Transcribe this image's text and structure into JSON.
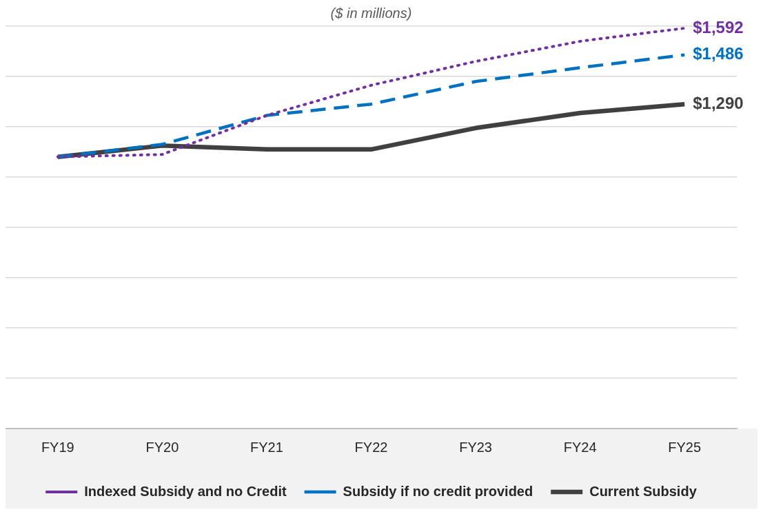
{
  "chart_data": {
    "type": "line",
    "subtitle": "($ in millions)",
    "categories": [
      "FY19",
      "FY20",
      "FY21",
      "FY22",
      "FY23",
      "FY24",
      "FY25"
    ],
    "series": [
      {
        "name": "Indexed Subsidy and no Credit",
        "color": "#7030a0",
        "line_style": "dotted",
        "values": [
          1080,
          1090,
          1245,
          1365,
          1460,
          1540,
          1592
        ],
        "value_labels": [
          null,
          null,
          null,
          null,
          null,
          null,
          "$1,592"
        ]
      },
      {
        "name": "Subsidy if no credit provided",
        "color": "#0070c0",
        "line_style": "dashed",
        "values": [
          1080,
          1130,
          1245,
          1290,
          1380,
          1435,
          1486
        ],
        "value_labels": [
          null,
          null,
          null,
          null,
          null,
          null,
          "$1,486"
        ]
      },
      {
        "name": "Current Subsidy",
        "color": "#404040",
        "line_style": "solid",
        "values": [
          1080,
          1125,
          1110,
          1110,
          1195,
          1255,
          1290
        ],
        "value_labels": [
          null,
          null,
          null,
          null,
          null,
          null,
          "$1,290"
        ]
      }
    ],
    "ylim": [
      0,
      1600
    ],
    "yticks": [
      {
        "value": 0,
        "label": null
      },
      {
        "value": 200,
        "label": null
      },
      {
        "value": 400,
        "label": null
      },
      {
        "value": 600,
        "label": null
      },
      {
        "value": 800,
        "label": null
      },
      {
        "value": 1000,
        "label": null
      },
      {
        "value": 1200,
        "label": null
      },
      {
        "value": 1400,
        "label": null
      },
      {
        "value": 1600,
        "label": null
      }
    ],
    "tick_labels": "x",
    "grid": "y",
    "legend": "bottom",
    "marker": "none"
  }
}
